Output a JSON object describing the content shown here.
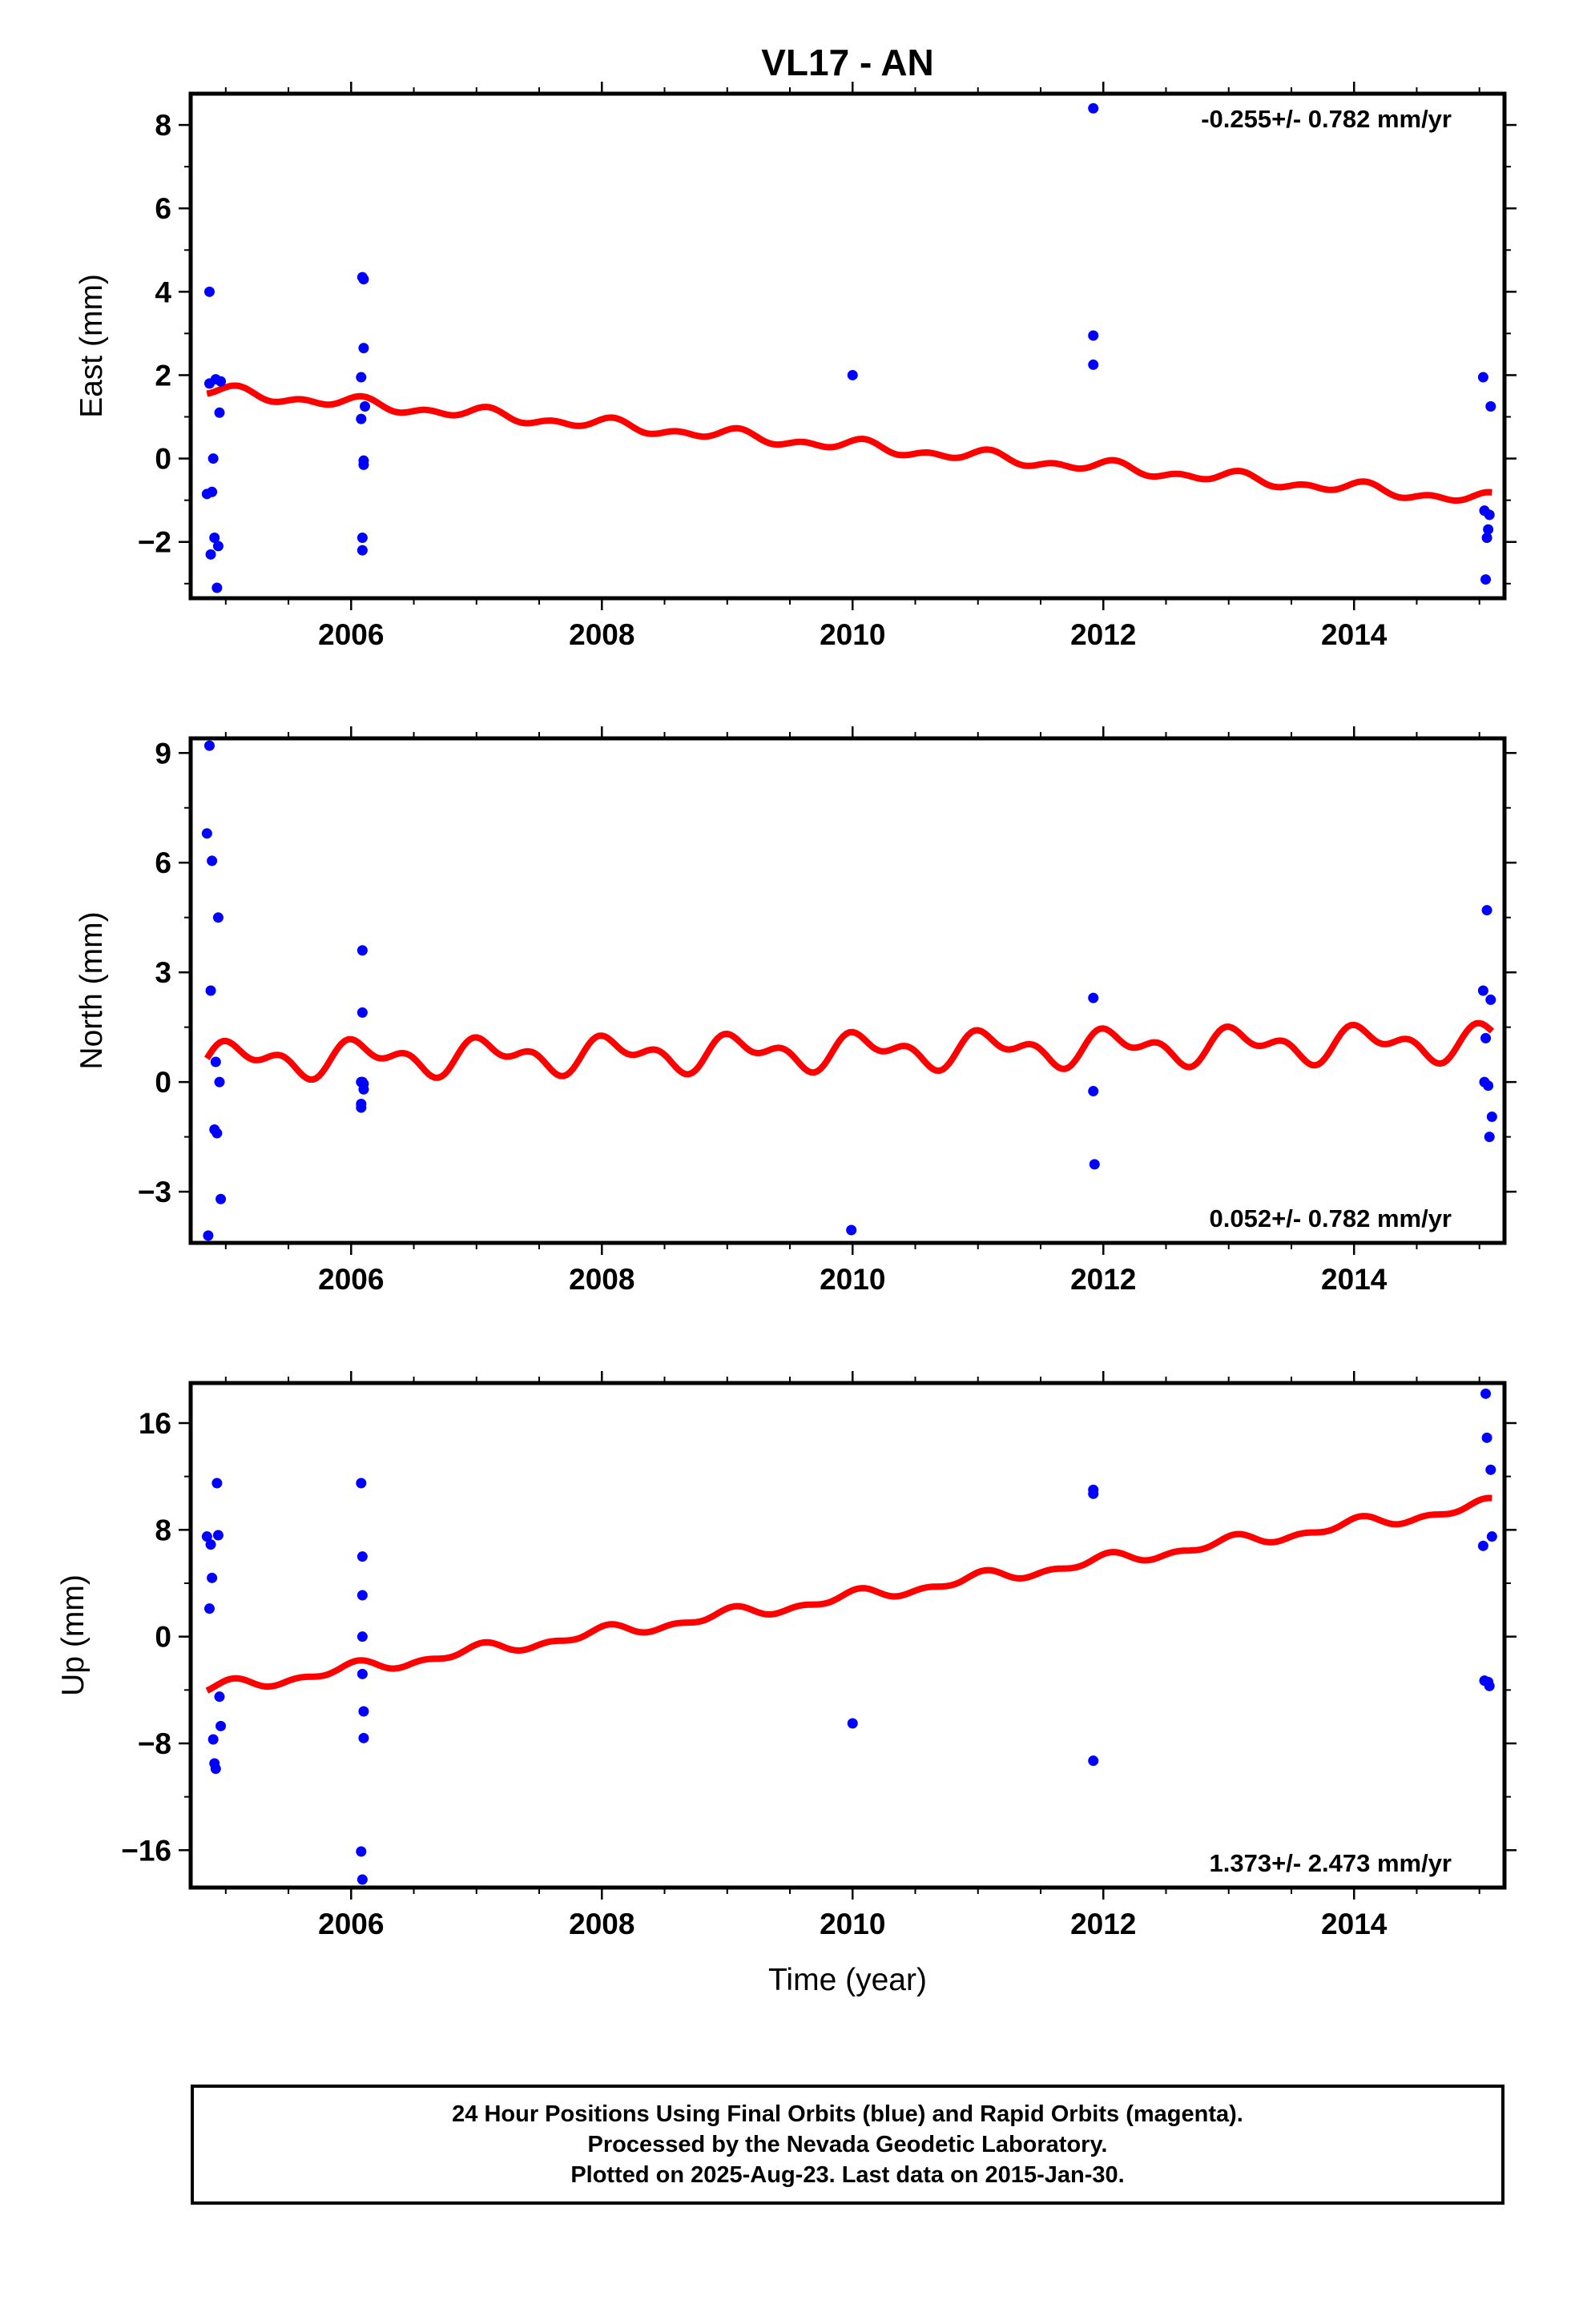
{
  "title": "VL17 - AN",
  "footer": {
    "line1": "24 Hour Positions Using Final Orbits (blue) and Rapid Orbits (magenta).",
    "line2": "Processed by the Nevada Geodetic Laboratory.",
    "line3": "Plotted on 2025-Aug-23. Last data on 2015-Jan-30."
  },
  "colors": {
    "points": "#0000ff",
    "model": "#ff0000",
    "frame": "#000000"
  },
  "chart_data": [
    {
      "type": "scatter",
      "id": "east",
      "ylabel": "East (mm)",
      "xlabel": "",
      "xlim": [
        2004.72,
        2015.2
      ],
      "ylim": [
        -3.35,
        8.75
      ],
      "xticks": [
        2006,
        2008,
        2010,
        2012,
        2014
      ],
      "yticks": [
        -2,
        0,
        2,
        4,
        6,
        8
      ],
      "ytick_labels": [
        "−2",
        "0",
        "2",
        "4",
        "6",
        "8"
      ],
      "rate_label": "-0.255+/- 0.782 mm/yr",
      "rate_position": "top-right",
      "model": {
        "start": 1.62,
        "end": -1.0,
        "amp1": 0.1,
        "amp2": 0.09,
        "phase1": 1.2,
        "phase2": 0.4
      },
      "x": [
        2004.85,
        2004.87,
        2004.87,
        2004.88,
        2004.89,
        2004.9,
        2004.91,
        2004.92,
        2004.93,
        2004.94,
        2004.95,
        2004.96,
        2006.08,
        2006.08,
        2006.09,
        2006.09,
        2006.09,
        2006.1,
        2006.1,
        2006.1,
        2006.1,
        2006.11,
        2010.0,
        2011.92,
        2011.92,
        2011.92,
        2015.03,
        2015.04,
        2015.05,
        2015.06,
        2015.07,
        2015.08,
        2015.09
      ],
      "y": [
        -0.85,
        4.0,
        1.8,
        -2.3,
        -0.8,
        0.0,
        -1.9,
        1.9,
        -3.1,
        -2.1,
        1.1,
        1.85,
        1.95,
        0.95,
        -1.9,
        -2.2,
        4.35,
        4.3,
        2.65,
        -0.05,
        -0.15,
        1.25,
        2.0,
        8.4,
        2.95,
        2.25,
        1.95,
        -1.25,
        -2.9,
        -1.9,
        -1.7,
        -1.35,
        1.25
      ]
    },
    {
      "type": "scatter",
      "id": "north",
      "ylabel": "North (mm)",
      "xlabel": "",
      "xlim": [
        2004.72,
        2015.2
      ],
      "ylim": [
        -4.4,
        9.4
      ],
      "xticks": [
        2006,
        2008,
        2010,
        2012,
        2014
      ],
      "yticks": [
        -3,
        0,
        3,
        6,
        9
      ],
      "ytick_labels": [
        "−3",
        "0",
        "3",
        "6",
        "9"
      ],
      "rate_label": "0.052+/- 0.782 mm/yr",
      "rate_position": "bottom-right",
      "model": {
        "start": 0.6,
        "end": 1.1,
        "amp1": 0.35,
        "amp2": 0.28,
        "phase1": 0.9,
        "phase2": 2.1
      },
      "x": [
        2004.85,
        2004.86,
        2004.87,
        2004.88,
        2004.89,
        2004.91,
        2004.92,
        2004.93,
        2004.94,
        2004.95,
        2004.96,
        2006.08,
        2006.08,
        2006.08,
        2006.09,
        2006.09,
        2006.09,
        2006.1,
        2006.1,
        2009.99,
        2011.92,
        2011.92,
        2011.93,
        2015.03,
        2015.04,
        2015.05,
        2015.06,
        2015.07,
        2015.08,
        2015.09,
        2015.1
      ],
      "y": [
        6.8,
        -4.2,
        9.2,
        2.5,
        6.05,
        -1.3,
        0.55,
        -1.4,
        4.5,
        0.0,
        -3.2,
        0.0,
        -0.6,
        -0.7,
        0.0,
        3.6,
        1.9,
        -0.2,
        -0.05,
        -4.05,
        2.3,
        -0.25,
        -2.25,
        2.5,
        0.0,
        1.2,
        4.7,
        -0.1,
        -1.5,
        2.25,
        -0.95
      ]
    },
    {
      "type": "scatter",
      "id": "up",
      "ylabel": "Up (mm)",
      "xlabel": "Time (year)",
      "xlim": [
        2004.72,
        2015.2
      ],
      "ylim": [
        -18.8,
        19.0
      ],
      "xticks": [
        2006,
        2008,
        2010,
        2012,
        2014
      ],
      "yticks": [
        -16,
        -8,
        0,
        8,
        16
      ],
      "ytick_labels": [
        "−16",
        "−8",
        "0",
        "8",
        "16"
      ],
      "rate_label": "1.373+/- 2.473 mm/yr",
      "rate_position": "bottom-right",
      "model": {
        "start": -4.0,
        "end": 9.85,
        "amp1": 0.35,
        "amp2": 0.25,
        "phase1": 1.5,
        "phase2": 0.7
      },
      "x": [
        2004.85,
        2004.87,
        2004.88,
        2004.89,
        2004.9,
        2004.91,
        2004.92,
        2004.93,
        2004.94,
        2004.95,
        2004.96,
        2006.08,
        2006.08,
        2006.09,
        2006.09,
        2006.09,
        2006.09,
        2006.09,
        2006.1,
        2006.1,
        2010.0,
        2011.92,
        2011.92,
        2011.92,
        2015.03,
        2015.04,
        2015.05,
        2015.06,
        2015.07,
        2015.08,
        2015.09,
        2015.1
      ],
      "y": [
        7.5,
        2.1,
        6.9,
        4.4,
        -7.7,
        -9.5,
        -9.9,
        11.5,
        7.6,
        -4.5,
        -6.7,
        11.5,
        -16.1,
        -18.2,
        -2.8,
        6.0,
        3.1,
        0.0,
        -5.6,
        -7.6,
        -6.5,
        11.0,
        10.7,
        -9.3,
        6.8,
        -3.3,
        18.2,
        14.9,
        -3.4,
        -3.7,
        12.5,
        7.5
      ]
    }
  ]
}
